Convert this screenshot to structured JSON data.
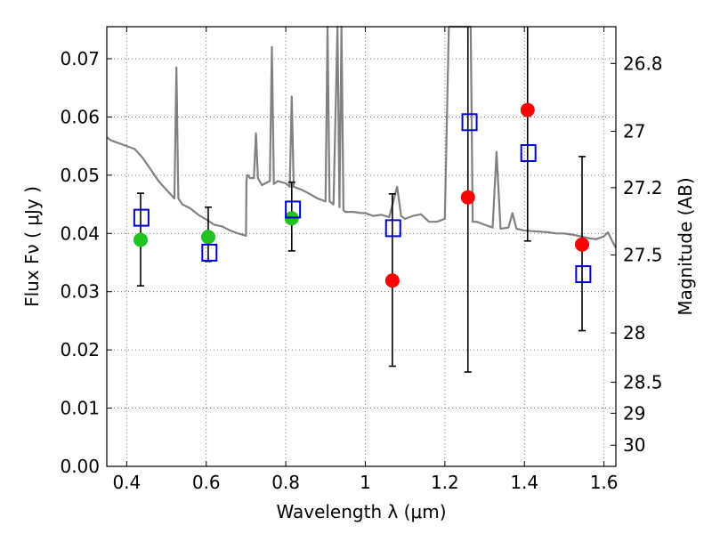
{
  "chart_data": {
    "type": "scatter",
    "xlabel": "Wavelength  λ (μm)",
    "ylabel": "Flux  Fν  ( μJy )",
    "y2label": "Magnitude (AB)",
    "xlim": [
      0.35,
      1.63
    ],
    "ylim": [
      0.0,
      0.0755
    ],
    "grid": true,
    "x_ticks": [
      "0.4",
      "0.6",
      "0.8",
      "1",
      "1.2",
      "1.4",
      "1.6"
    ],
    "x_tick_values": [
      0.4,
      0.6,
      0.8,
      1.0,
      1.2,
      1.4,
      1.6
    ],
    "y_ticks": [
      "0.00",
      "0.01",
      "0.02",
      "0.03",
      "0.04",
      "0.05",
      "0.06",
      "0.07"
    ],
    "y_tick_values": [
      0.0,
      0.01,
      0.02,
      0.03,
      0.04,
      0.05,
      0.06,
      0.07
    ],
    "y2_ticks": [
      "26.8",
      "27",
      "27.2",
      "27.5",
      "28",
      "28.5",
      "29",
      "30"
    ],
    "y2_tick_values": [
      26.8,
      27.0,
      27.2,
      27.5,
      28.0,
      28.5,
      29.0,
      30.0
    ],
    "colors": {
      "template": "#808080",
      "detected": "#1fc21f",
      "nondetected": "#ff0000",
      "model": "#0000cc",
      "errorbar": "#000000",
      "grid": "#555555"
    },
    "series": [
      {
        "style": "line",
        "x": [
          0.35,
          0.36,
          0.38,
          0.4,
          0.42,
          0.44,
          0.46,
          0.48,
          0.5,
          0.52,
          0.525,
          0.53,
          0.54,
          0.56,
          0.58,
          0.6,
          0.62,
          0.64,
          0.66,
          0.68,
          0.69,
          0.7,
          0.701,
          0.703,
          0.705,
          0.707,
          0.71,
          0.72,
          0.725,
          0.73,
          0.74,
          0.76,
          0.765,
          0.77,
          0.78,
          0.8,
          0.81,
          0.815,
          0.82,
          0.84,
          0.86,
          0.88,
          0.9,
          0.905,
          0.91,
          0.92,
          0.93,
          0.935,
          0.94,
          0.945,
          0.95,
          0.97,
          0.99,
          1.0,
          1.02,
          1.04,
          1.06,
          1.08,
          1.09,
          1.1,
          1.12,
          1.14,
          1.16,
          1.18,
          1.2,
          1.21,
          1.215,
          1.22,
          1.23,
          1.24,
          1.25,
          1.26,
          1.265,
          1.27,
          1.28,
          1.3,
          1.32,
          1.33,
          1.34,
          1.36,
          1.37,
          1.38,
          1.4,
          1.42,
          1.44,
          1.46,
          1.48,
          1.5,
          1.52,
          1.54,
          1.56,
          1.58,
          1.6,
          1.61,
          1.62,
          1.63
        ],
        "y": [
          0.0565,
          0.056,
          0.0555,
          0.055,
          0.0545,
          0.053,
          0.051,
          0.049,
          0.0475,
          0.046,
          0.0685,
          0.046,
          0.045,
          0.0443,
          0.0432,
          0.0424,
          0.0415,
          0.0412,
          0.0405,
          0.04,
          0.0398,
          0.0396,
          0.049,
          0.05,
          0.05,
          0.0498,
          0.0495,
          0.0495,
          0.0572,
          0.0495,
          0.0483,
          0.049,
          0.072,
          0.0485,
          0.049,
          0.0486,
          0.048,
          0.0635,
          0.048,
          0.0475,
          0.0468,
          0.046,
          0.0455,
          0.0755,
          0.0455,
          0.045,
          0.0755,
          0.0445,
          0.0755,
          0.044,
          0.0437,
          0.0437,
          0.0435,
          0.0435,
          0.043,
          0.0432,
          0.0428,
          0.048,
          0.043,
          0.0425,
          0.043,
          0.0433,
          0.042,
          0.042,
          0.0425,
          0.0755,
          0.0755,
          0.0755,
          0.0755,
          0.0755,
          0.0755,
          0.0755,
          0.0755,
          0.042,
          0.042,
          0.0415,
          0.041,
          0.054,
          0.0408,
          0.041,
          0.0435,
          0.0408,
          0.0405,
          0.0404,
          0.0403,
          0.0402,
          0.04,
          0.04,
          0.0398,
          0.0395,
          0.0392,
          0.039,
          0.0395,
          0.0402,
          0.0388,
          0.0375
        ]
      },
      {
        "style": "errorbar",
        "x": [
          0.435,
          0.605,
          0.815,
          1.068,
          1.258,
          1.408,
          1.545
        ],
        "ylow": [
          0.031,
          0.0352,
          0.037,
          0.0172,
          0.0162,
          0.0387,
          0.0233
        ],
        "yhigh": [
          0.0469,
          0.0445,
          0.0488,
          0.0468,
          0.0755,
          0.0755,
          0.0532
        ]
      },
      {
        "style": "marker-circle",
        "role": "detected",
        "x": [
          0.435,
          0.605,
          0.815
        ],
        "y": [
          0.0389,
          0.0394,
          0.0426
        ]
      },
      {
        "style": "marker-circle",
        "role": "nondetected",
        "x": [
          1.068,
          1.258,
          1.408,
          1.545
        ],
        "y": [
          0.0319,
          0.0462,
          0.0612,
          0.0381
        ]
      },
      {
        "style": "marker-square",
        "role": "model",
        "x": [
          0.437,
          0.608,
          0.818,
          1.07,
          1.262,
          1.41,
          1.548
        ],
        "y": [
          0.0427,
          0.0367,
          0.0441,
          0.0409,
          0.0591,
          0.0538,
          0.033
        ]
      }
    ]
  }
}
